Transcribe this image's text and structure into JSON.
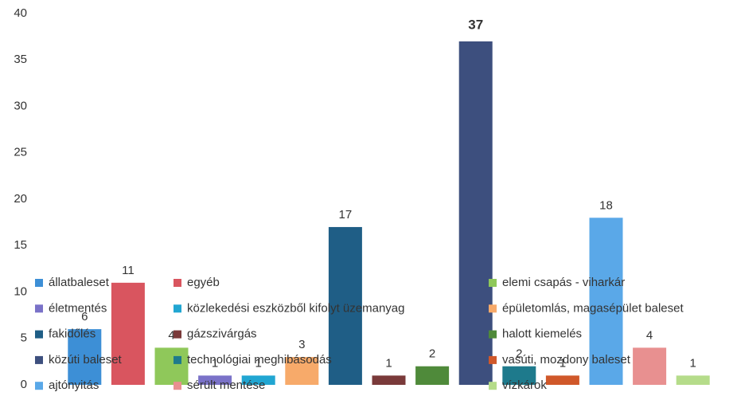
{
  "chart_data": {
    "type": "bar",
    "categories": [
      "állatbaleset",
      "egyéb",
      "elemi csapás - viharkár",
      "életmentés",
      "közlekedési eszközből kifolyt üzemanyag",
      "épületomlás, magasépület baleset",
      "fakidőlés",
      "gázszivárgás",
      "halott kiemelés",
      "közúti baleset",
      "technológiai meghibásodás",
      "vasúti, mozdony baleset",
      "ajtónyitás",
      "sérült mentése",
      "vízkárok"
    ],
    "values": [
      6,
      11,
      4,
      1,
      1,
      3,
      17,
      1,
      2,
      37,
      2,
      1,
      18,
      4,
      1
    ],
    "colors": [
      "#3d8fd6",
      "#d9555f",
      "#8fc85a",
      "#7a72c8",
      "#21a6d2",
      "#f7aa6a",
      "#1f5e86",
      "#7a3a3a",
      "#4f8a3a",
      "#3d4f7e",
      "#1e7a8c",
      "#d0582a",
      "#5aa8e8",
      "#e89090",
      "#b5dc8a"
    ],
    "ylim": [
      0,
      40
    ],
    "yticks": [
      0,
      5,
      10,
      15,
      20,
      25,
      30,
      35,
      40
    ]
  }
}
